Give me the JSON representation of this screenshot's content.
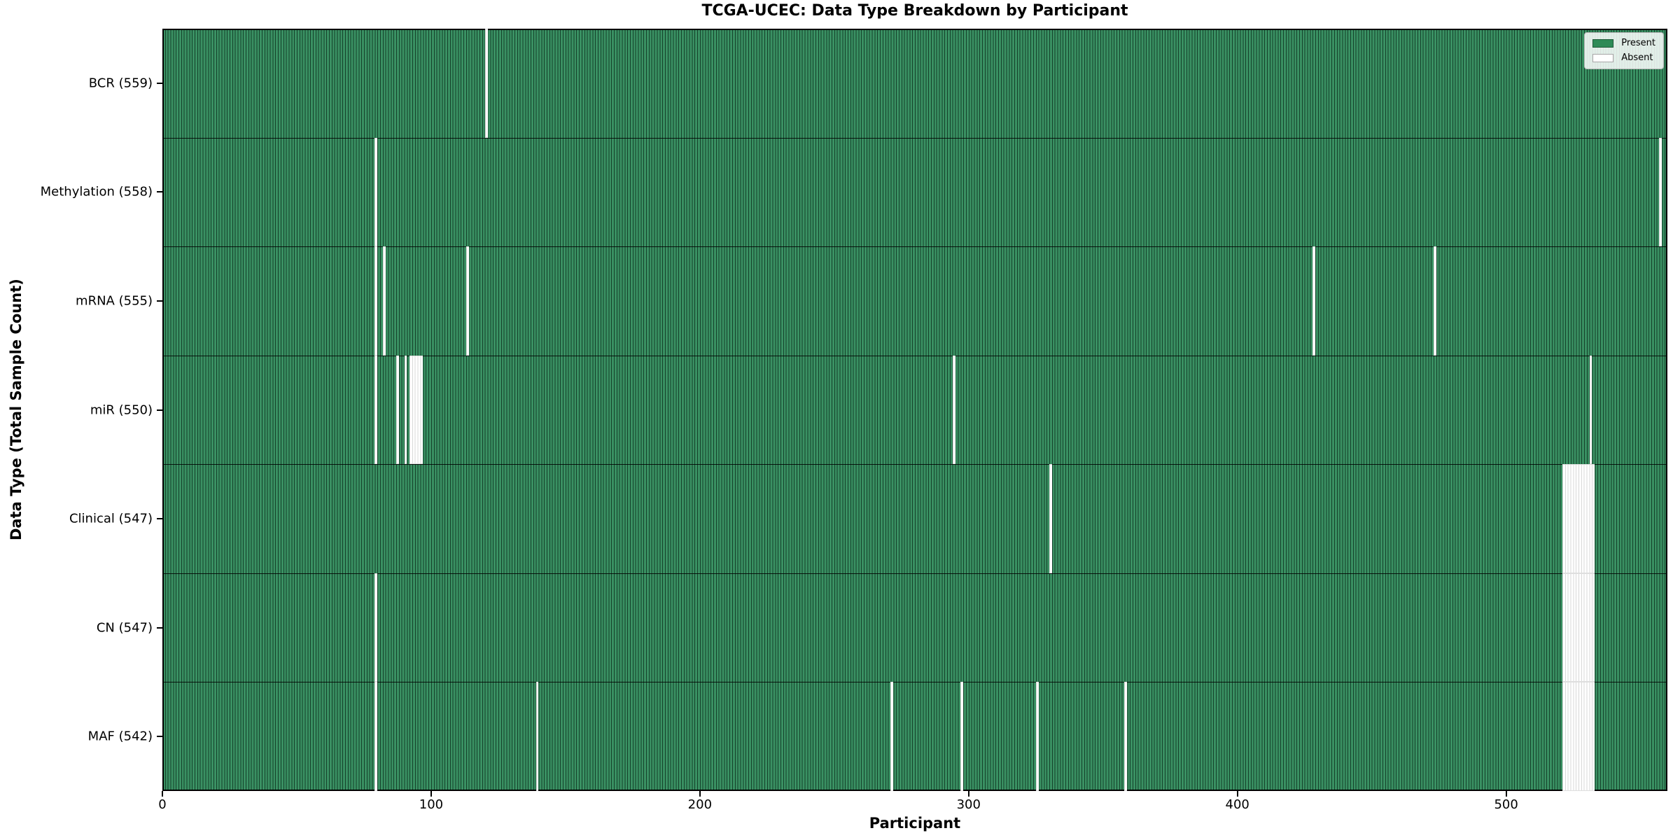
{
  "title": "TCGA-UCEC: Data Type Breakdown by Participant",
  "xlabel": "Participant",
  "ylabel": "Data Type (Total Sample Count)",
  "colors": {
    "present": "#2e8b57",
    "present_fill": "#3a9163",
    "bar_edge": "#14402a",
    "absent": "#ffffff",
    "absent_edge": "#d8d8d8",
    "background": "#ffffff",
    "text": "#000000"
  },
  "chart_data": {
    "type": "heatmap",
    "title": "TCGA-UCEC: Data Type Breakdown by Participant",
    "xlabel": "Participant",
    "ylabel": "Data Type (Total Sample Count)",
    "total_participants": 560,
    "xlim": [
      0,
      560
    ],
    "x_ticks": [
      0,
      100,
      200,
      300,
      400,
      500
    ],
    "grid": false,
    "legend_position": "upper right",
    "legend": [
      {
        "label": "Present",
        "color": "#2e8b57"
      },
      {
        "label": "Absent",
        "color": "#ffffff"
      }
    ],
    "rows": [
      {
        "label": "BCR (559)",
        "data_type": "BCR",
        "present_count": 559,
        "absent_participants": [
          120
        ]
      },
      {
        "label": "Methylation (558)",
        "data_type": "Methylation",
        "present_count": 558,
        "absent_participants": [
          79,
          557
        ]
      },
      {
        "label": "mRNA (555)",
        "data_type": "mRNA",
        "present_count": 555,
        "absent_participants": [
          79,
          82,
          113,
          428,
          473
        ]
      },
      {
        "label": "miR (550)",
        "data_type": "miR",
        "present_count": 550,
        "absent_participants": [
          79,
          87,
          90,
          92,
          93,
          94,
          95,
          96,
          294,
          531
        ]
      },
      {
        "label": "Clinical (547)",
        "data_type": "Clinical",
        "present_count": 547,
        "absent_participants": [
          330,
          521,
          522,
          523,
          524,
          525,
          526,
          527,
          528,
          529,
          530,
          531,
          532
        ]
      },
      {
        "label": "CN (547)",
        "data_type": "CN",
        "present_count": 547,
        "absent_participants": [
          79,
          521,
          522,
          523,
          524,
          525,
          526,
          527,
          528,
          529,
          530,
          531,
          532
        ]
      },
      {
        "label": "MAF (542)",
        "data_type": "MAF",
        "present_count": 542,
        "absent_participants": [
          79,
          139,
          271,
          297,
          325,
          358,
          521,
          522,
          523,
          524,
          525,
          526,
          527,
          528,
          529,
          530,
          531,
          532
        ]
      }
    ]
  }
}
